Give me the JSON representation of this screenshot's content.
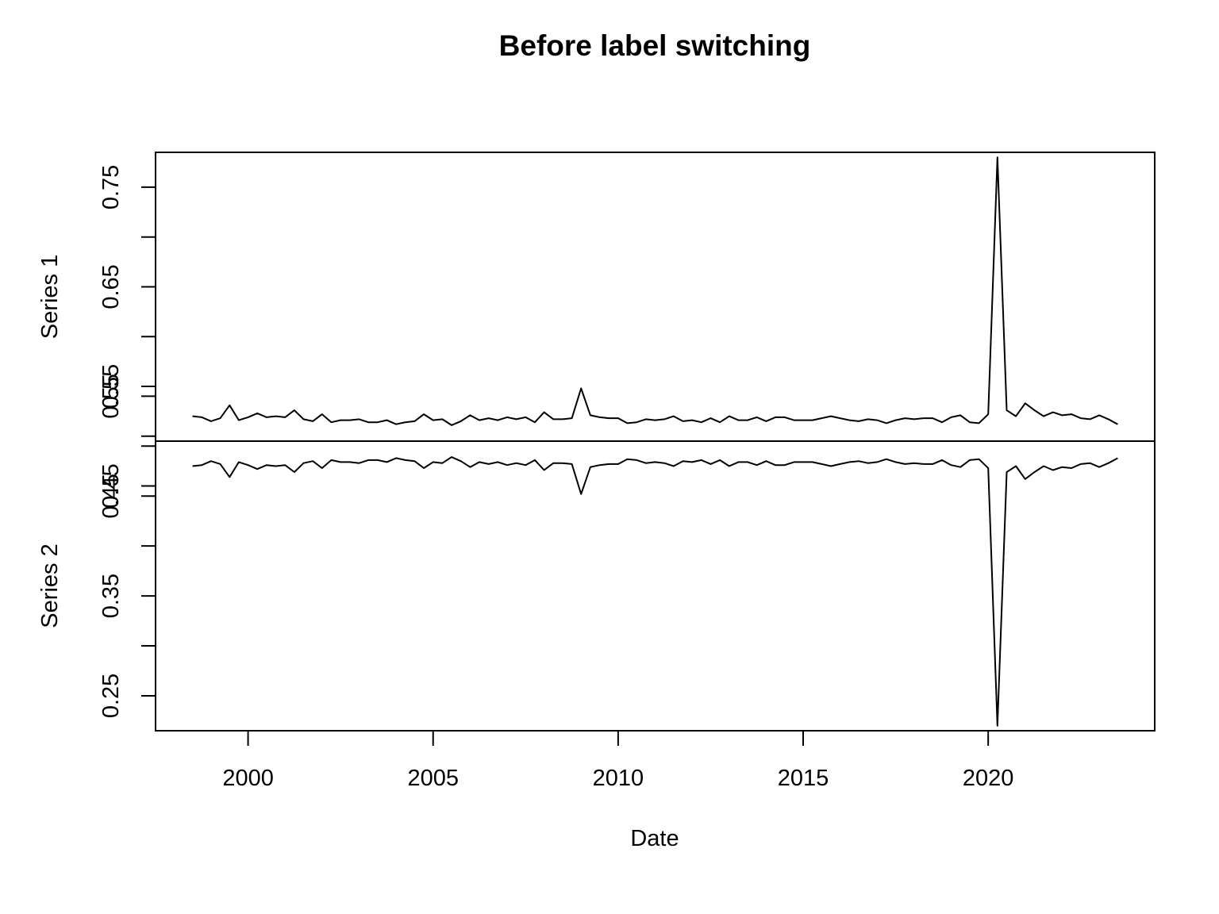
{
  "chart_data": {
    "type": "line",
    "title": "Before label switching",
    "xlabel": "Date",
    "x_ticks": [
      "2000",
      "2005",
      "2010",
      "2015",
      "2020"
    ],
    "xlim": [
      1997.5,
      2024.5
    ],
    "grid": false,
    "x_start": 1998.5,
    "x_step": 0.25,
    "panels": [
      {
        "name": "Series 1",
        "ylim": [
          0.495,
          0.785
        ],
        "y_ticks": [
          "0.45",
          "0.55",
          "0.65",
          "0.75"
        ],
        "values": [
          0.52,
          0.519,
          0.515,
          0.518,
          0.531,
          0.516,
          0.519,
          0.523,
          0.519,
          0.52,
          0.519,
          0.526,
          0.517,
          0.515,
          0.522,
          0.514,
          0.516,
          0.516,
          0.517,
          0.514,
          0.514,
          0.516,
          0.512,
          0.514,
          0.515,
          0.522,
          0.516,
          0.517,
          0.511,
          0.515,
          0.521,
          0.516,
          0.518,
          0.516,
          0.519,
          0.517,
          0.519,
          0.514,
          0.524,
          0.517,
          0.517,
          0.518,
          0.548,
          0.521,
          0.519,
          0.518,
          0.518,
          0.513,
          0.514,
          0.517,
          0.516,
          0.517,
          0.52,
          0.515,
          0.516,
          0.514,
          0.518,
          0.514,
          0.52,
          0.516,
          0.516,
          0.519,
          0.515,
          0.519,
          0.519,
          0.516,
          0.516,
          0.516,
          0.518,
          0.52,
          0.518,
          0.516,
          0.515,
          0.517,
          0.516,
          0.513,
          0.516,
          0.518,
          0.517,
          0.518,
          0.518,
          0.514,
          0.519,
          0.521,
          0.514,
          0.513,
          0.522,
          0.78,
          0.526,
          0.52,
          0.533,
          0.526,
          0.52,
          0.524,
          0.521,
          0.522,
          0.518,
          0.517,
          0.521,
          0.517,
          0.512
        ]
      },
      {
        "name": "Series 2",
        "ylim": [
          0.215,
          0.505
        ],
        "y_ticks": [
          "0.25",
          "0.35",
          "0.45",
          "0.55"
        ],
        "values": [
          0.48,
          0.481,
          0.485,
          0.482,
          0.469,
          0.484,
          0.481,
          0.477,
          0.481,
          0.48,
          0.481,
          0.474,
          0.483,
          0.485,
          0.478,
          0.486,
          0.484,
          0.484,
          0.483,
          0.486,
          0.486,
          0.484,
          0.488,
          0.486,
          0.485,
          0.478,
          0.484,
          0.483,
          0.489,
          0.485,
          0.479,
          0.484,
          0.482,
          0.484,
          0.481,
          0.483,
          0.481,
          0.486,
          0.476,
          0.483,
          0.483,
          0.482,
          0.452,
          0.479,
          0.481,
          0.482,
          0.482,
          0.487,
          0.486,
          0.483,
          0.484,
          0.483,
          0.48,
          0.485,
          0.484,
          0.486,
          0.482,
          0.486,
          0.48,
          0.484,
          0.484,
          0.481,
          0.485,
          0.481,
          0.481,
          0.484,
          0.484,
          0.484,
          0.482,
          0.48,
          0.482,
          0.484,
          0.485,
          0.483,
          0.484,
          0.487,
          0.484,
          0.482,
          0.483,
          0.482,
          0.482,
          0.486,
          0.481,
          0.479,
          0.486,
          0.487,
          0.478,
          0.22,
          0.474,
          0.48,
          0.467,
          0.474,
          0.48,
          0.476,
          0.479,
          0.478,
          0.482,
          0.483,
          0.479,
          0.483,
          0.488
        ]
      }
    ]
  }
}
